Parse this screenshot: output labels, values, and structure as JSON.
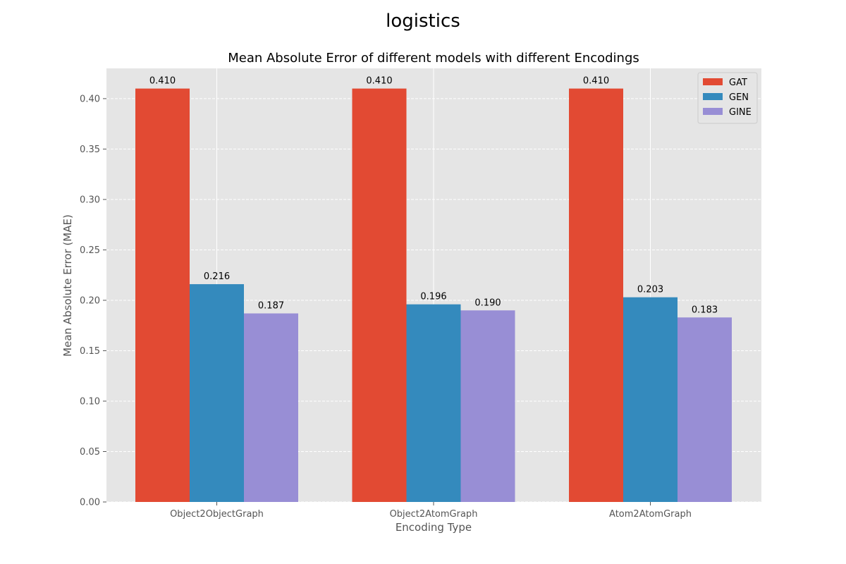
{
  "figure": {
    "suptitle": "logistics"
  },
  "chart_data": {
    "type": "bar",
    "title": "Mean Absolute Error of different models with different Encodings",
    "xlabel": "Encoding Type",
    "ylabel": "Mean Absolute Error (MAE)",
    "categories": [
      "Object2ObjectGraph",
      "Object2AtomGraph",
      "Atom2AtomGraph"
    ],
    "series": [
      {
        "name": "GAT",
        "color": "#E24A33",
        "values": [
          0.41,
          0.41,
          0.41
        ],
        "labels": [
          "0.410",
          "0.410",
          "0.410"
        ]
      },
      {
        "name": "GEN",
        "color": "#348ABD",
        "values": [
          0.216,
          0.196,
          0.203
        ],
        "labels": [
          "0.216",
          "0.196",
          "0.203"
        ]
      },
      {
        "name": "GINE",
        "color": "#988ED5",
        "values": [
          0.187,
          0.19,
          0.183
        ],
        "labels": [
          "0.187",
          "0.190",
          "0.183"
        ]
      }
    ],
    "ylim": [
      0,
      0.43
    ],
    "yticks": [
      0.0,
      0.05,
      0.1,
      0.15,
      0.2,
      0.25,
      0.3,
      0.35,
      0.4
    ],
    "ytick_labels": [
      "0.00",
      "0.05",
      "0.10",
      "0.15",
      "0.20",
      "0.25",
      "0.30",
      "0.35",
      "0.40"
    ],
    "grid": true,
    "legend_position": "top-right",
    "background_color": "#E5E5E5",
    "grid_color": "#FFFFFF"
  }
}
